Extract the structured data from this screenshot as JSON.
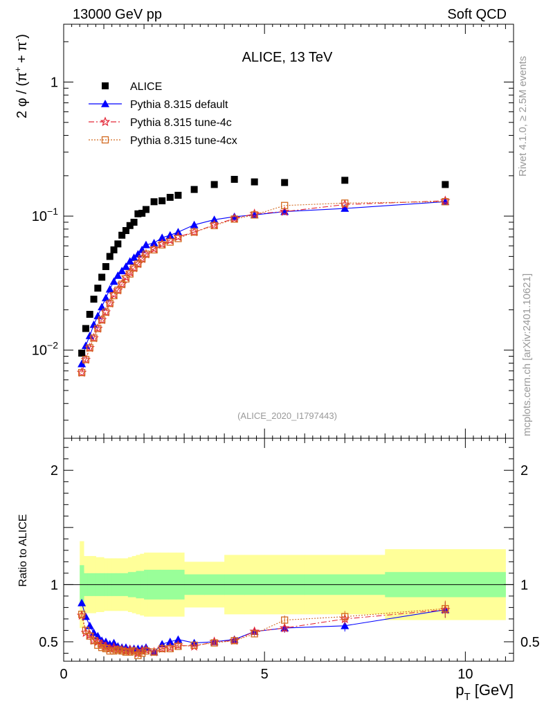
{
  "header": {
    "left_label": "13000 GeV pp",
    "right_label": "Soft QCD"
  },
  "side_labels": {
    "rivet": "Rivet 4.1.0, ≥ 2.5M events",
    "source": "mcplots.cern.ch [arXiv:2401.10621]"
  },
  "chart_data": {
    "type": "scatter",
    "title": "ALICE, 13 TeV",
    "analysis_id": "(ALICE_2020_I1797443)",
    "xlabel": "p_T [GeV]",
    "ylabel_top": "2 φ / (π⁺ + π⁻)",
    "ylabel_ratio": "Ratio to ALICE",
    "xlim": [
      0,
      11.2
    ],
    "ylim_top": [
      0.0022,
      2.7
    ],
    "ylim_ratio": [
      0.33,
      2.28
    ],
    "y_scale_top": "log",
    "x_ticks": [
      0,
      5,
      10
    ],
    "x_tick_labels": [
      "0",
      "5",
      "10"
    ],
    "y_ticks_top": [
      0.01,
      0.1,
      1
    ],
    "y_tick_labels_top": [
      "10⁻²",
      "10⁻¹",
      "1"
    ],
    "y_ticks_ratio": [
      0.5,
      1,
      2
    ],
    "y_tick_labels_ratio": [
      "0.5",
      "1",
      "2"
    ],
    "legend": {
      "position": "top-left",
      "entries": [
        {
          "label": "ALICE",
          "color": "#000000",
          "marker": "square"
        },
        {
          "label": "Pythia 8.315 default",
          "color": "#0000ff",
          "marker": "triangle",
          "dash": "solid"
        },
        {
          "label": "Pythia 8.315 tune-4c",
          "color": "#e32636",
          "marker": "star",
          "dash": "dashdot"
        },
        {
          "label": "Pythia 8.315 tune-4cx",
          "color": "#d2691e",
          "marker": "open-square",
          "dash": "dotted"
        }
      ]
    },
    "x": [
      0.45,
      0.55,
      0.65,
      0.75,
      0.85,
      0.95,
      1.05,
      1.15,
      1.25,
      1.35,
      1.45,
      1.55,
      1.65,
      1.75,
      1.85,
      1.95,
      2.05,
      2.25,
      2.45,
      2.65,
      2.85,
      3.25,
      3.75,
      4.25,
      4.75,
      5.5,
      7.0,
      9.5
    ],
    "series": [
      {
        "name": "ALICE",
        "values": [
          0.0095,
          0.0145,
          0.0185,
          0.024,
          0.029,
          0.035,
          0.042,
          0.05,
          0.056,
          0.062,
          0.072,
          0.078,
          0.085,
          0.09,
          0.104,
          0.105,
          0.112,
          0.128,
          0.13,
          0.138,
          0.143,
          0.158,
          0.172,
          0.188,
          0.18,
          0.178,
          0.185,
          0.172
        ]
      },
      {
        "name": "Pythia 8.315 default",
        "values": [
          0.0079,
          0.0108,
          0.0128,
          0.0155,
          0.018,
          0.021,
          0.0245,
          0.0285,
          0.0325,
          0.036,
          0.039,
          0.042,
          0.046,
          0.049,
          0.052,
          0.056,
          0.061,
          0.063,
          0.069,
          0.072,
          0.076,
          0.086,
          0.094,
          0.099,
          0.102,
          0.108,
          0.114,
          0.128
        ]
      },
      {
        "name": "Pythia 8.315 tune-4c",
        "values": [
          0.0068,
          0.0085,
          0.0104,
          0.0123,
          0.0145,
          0.0168,
          0.0192,
          0.0223,
          0.026,
          0.028,
          0.031,
          0.035,
          0.038,
          0.041,
          0.044,
          0.048,
          0.052,
          0.057,
          0.062,
          0.066,
          0.07,
          0.076,
          0.086,
          0.096,
          0.104,
          0.108,
          0.122,
          0.13
        ]
      },
      {
        "name": "Pythia 8.315 tune-4cx",
        "values": [
          0.0068,
          0.0085,
          0.0104,
          0.0123,
          0.0145,
          0.0168,
          0.0192,
          0.0223,
          0.0255,
          0.028,
          0.031,
          0.034,
          0.037,
          0.041,
          0.044,
          0.048,
          0.052,
          0.056,
          0.061,
          0.064,
          0.068,
          0.076,
          0.085,
          0.095,
          0.102,
          0.12,
          0.125,
          0.128
        ]
      }
    ],
    "ratio_series": [
      {
        "name": "Pythia 8.315 default",
        "values": [
          0.84,
          0.72,
          0.64,
          0.58,
          0.55,
          0.51,
          0.5,
          0.48,
          0.49,
          0.46,
          0.45,
          0.45,
          0.44,
          0.44,
          0.44,
          0.44,
          0.45,
          0.41,
          0.48,
          0.5,
          0.52,
          0.49,
          0.5,
          0.52,
          0.59,
          0.62,
          0.64,
          0.78
        ]
      },
      {
        "name": "Pythia 8.315 tune-4c",
        "values": [
          0.73,
          0.58,
          0.56,
          0.51,
          0.5,
          0.48,
          0.46,
          0.44,
          0.45,
          0.43,
          0.43,
          0.42,
          0.43,
          0.42,
          0.4,
          0.42,
          0.43,
          0.41,
          0.44,
          0.45,
          0.47,
          0.46,
          0.5,
          0.51,
          0.59,
          0.62,
          0.7,
          0.78
        ]
      },
      {
        "name": "Pythia 8.315 tune-4cx",
        "values": [
          0.74,
          0.6,
          0.55,
          0.51,
          0.47,
          0.45,
          0.44,
          0.42,
          0.42,
          0.43,
          0.42,
          0.41,
          0.41,
          0.42,
          0.38,
          0.4,
          0.42,
          0.41,
          0.44,
          0.44,
          0.46,
          0.47,
          0.49,
          0.51,
          0.57,
          0.69,
          0.72,
          0.79
        ]
      }
    ],
    "ratio_errors": [
      0.02,
      0.02,
      0.02,
      0.02,
      0.02,
      0.02,
      0.02,
      0.02,
      0.02,
      0.02,
      0.02,
      0.02,
      0.02,
      0.02,
      0.02,
      0.02,
      0.02,
      0.02,
      0.02,
      0.02,
      0.02,
      0.02,
      0.02,
      0.03,
      0.03,
      0.04,
      0.05,
      0.07
    ],
    "uncertainty_bands": {
      "green_color": "#99ff99",
      "yellow_color": "#ffff99",
      "edges": [
        0.4,
        0.5,
        0.6,
        0.7,
        0.8,
        0.9,
        1.0,
        1.1,
        1.2,
        1.3,
        1.4,
        1.5,
        1.6,
        1.7,
        1.8,
        1.9,
        2.0,
        2.1,
        2.4,
        2.6,
        2.8,
        3.0,
        3.5,
        4.0,
        4.5,
        5.0,
        6.0,
        8.0,
        11.0
      ],
      "inner": [
        0.17,
        0.1,
        0.1,
        0.1,
        0.1,
        0.1,
        0.1,
        0.1,
        0.1,
        0.1,
        0.1,
        0.1,
        0.11,
        0.11,
        0.12,
        0.12,
        0.13,
        0.13,
        0.13,
        0.13,
        0.13,
        0.09,
        0.09,
        0.09,
        0.09,
        0.09,
        0.09,
        0.11
      ],
      "outer": [
        0.38,
        0.25,
        0.25,
        0.25,
        0.24,
        0.24,
        0.23,
        0.23,
        0.23,
        0.23,
        0.23,
        0.23,
        0.24,
        0.25,
        0.26,
        0.27,
        0.28,
        0.28,
        0.28,
        0.28,
        0.28,
        0.2,
        0.2,
        0.26,
        0.26,
        0.26,
        0.26,
        0.31
      ]
    }
  }
}
